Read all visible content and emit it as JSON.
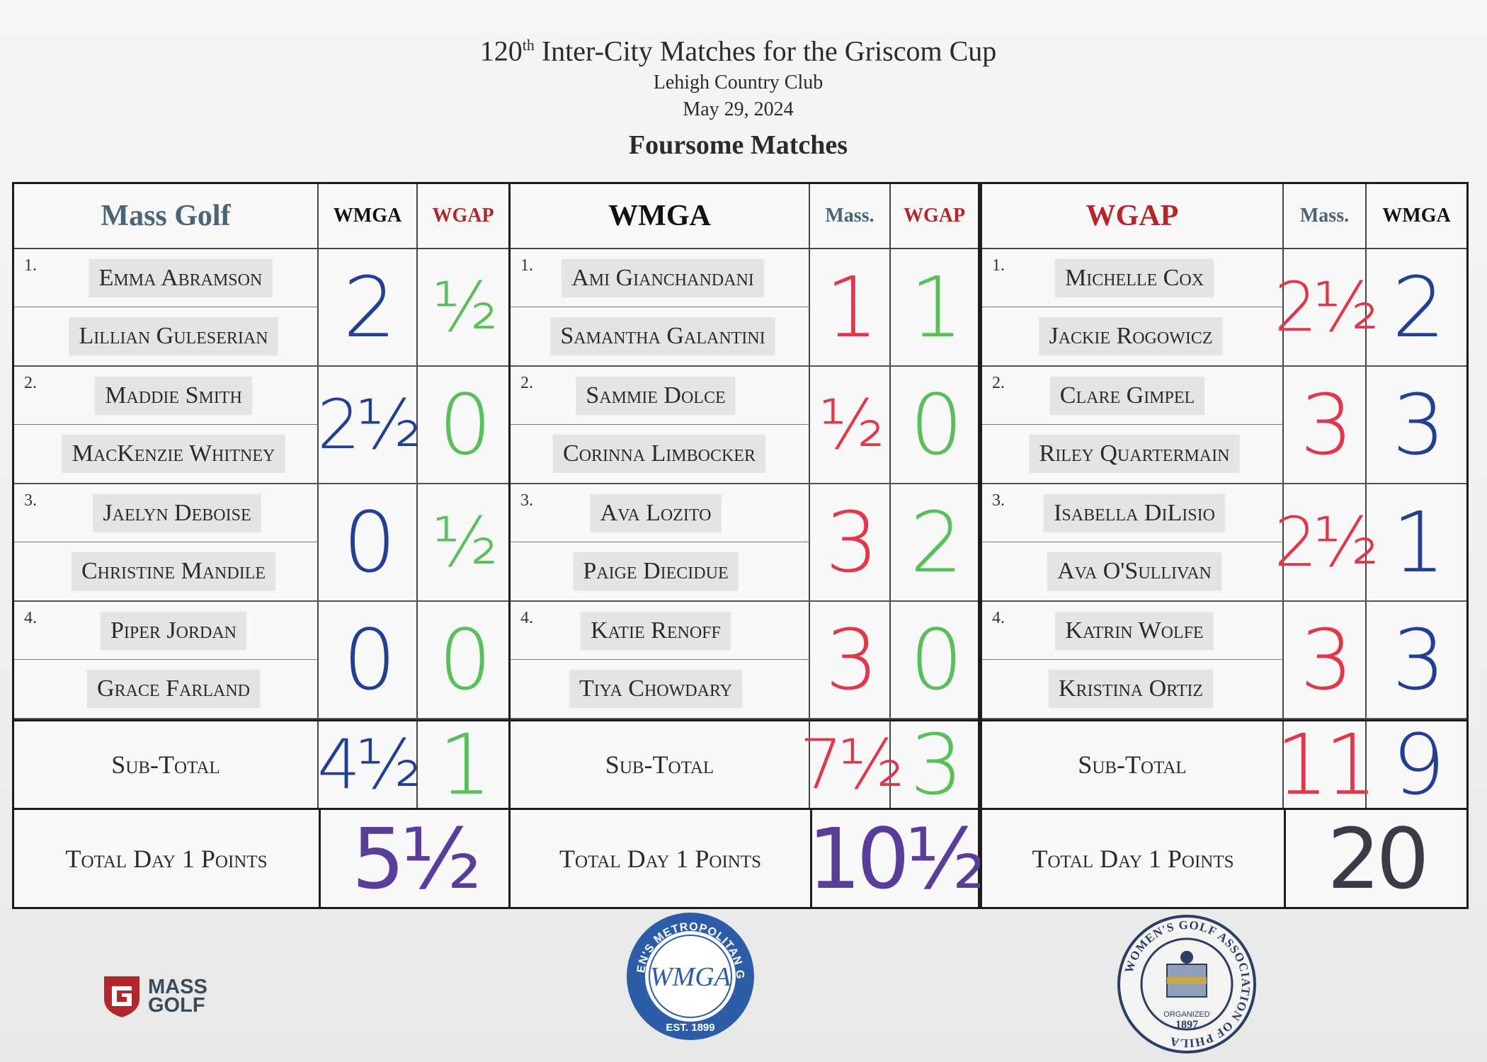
{
  "header": {
    "title_pre": "120",
    "title_sup": "th",
    "title_post": " Inter-City Matches for the Griscom Cup",
    "venue": "Lehigh Country Club",
    "date": "May 29, 2024",
    "format": "Foursome Matches"
  },
  "panels": [
    {
      "team": "Mass Golf",
      "col_a": "WMGA",
      "col_b": "WGAP",
      "matches": [
        {
          "num": "1.",
          "p1": "Emma Abramson",
          "p2": "Lillian Guleserian",
          "a": "2",
          "b": "½"
        },
        {
          "num": "2.",
          "p1": "Maddie Smith",
          "p2": "MacKenzie Whitney",
          "a": "2½",
          "b": "0"
        },
        {
          "num": "3.",
          "p1": "Jaelyn Deboise",
          "p2": "Christine Mandile",
          "a": "0",
          "b": "½"
        },
        {
          "num": "4.",
          "p1": "Piper Jordan",
          "p2": "Grace Farland",
          "a": "0",
          "b": "0"
        }
      ],
      "subtotal_label": "Sub-Total",
      "subtotal_a": "4½",
      "subtotal_b": "1",
      "total_label": "Total Day 1 Points",
      "total": "5½"
    },
    {
      "team": "WMGA",
      "col_a": "Mass.",
      "col_b": "WGAP",
      "matches": [
        {
          "num": "1.",
          "p1": "Ami Gianchandani",
          "p2": "Samantha Galantini",
          "a": "1",
          "b": "1"
        },
        {
          "num": "2.",
          "p1": "Sammie Dolce",
          "p2": "Corinna Limbocker",
          "a": "½",
          "b": "0"
        },
        {
          "num": "3.",
          "p1": "Ava Lozito",
          "p2": "Paige Diecidue",
          "a": "3",
          "b": "2"
        },
        {
          "num": "4.",
          "p1": "Katie Renoff",
          "p2": "Tiya Chowdary",
          "a": "3",
          "b": "0"
        }
      ],
      "subtotal_label": "Sub-Total",
      "subtotal_a": "7½",
      "subtotal_b": "3",
      "total_label": "Total Day 1 Points",
      "total": "10½"
    },
    {
      "team": "WGAP",
      "col_a": "Mass.",
      "col_b": "WMGA",
      "matches": [
        {
          "num": "1.",
          "p1": "Michelle Cox",
          "p2": "Jackie Rogowicz",
          "a": "2½",
          "b": "2"
        },
        {
          "num": "2.",
          "p1": "Clare Gimpel",
          "p2": "Riley Quartermain",
          "a": "3",
          "b": "3"
        },
        {
          "num": "3.",
          "p1": "Isabella DiLisio",
          "p2": "Ava O'Sullivan",
          "a": "2½",
          "b": "1"
        },
        {
          "num": "4.",
          "p1": "Katrin Wolfe",
          "p2": "Kristina Ortiz",
          "a": "3",
          "b": "3"
        }
      ],
      "subtotal_label": "Sub-Total",
      "subtotal_a": "11",
      "subtotal_b": "9",
      "total_label": "Total Day 1 Points",
      "total": "20"
    }
  ],
  "logos": {
    "massgolf_line1": "MASS",
    "massgolf_line2": "GOLF",
    "wmga_ring": "WOMEN'S METROPOLITAN GOLF",
    "wmga_mono": "WMGA",
    "wmga_est": "EST. 1899",
    "wgap_ring": "WOMEN'S GOLF ASSOCIATION OF PHILA",
    "wgap_org": "ORGANIZED",
    "wgap_year": "1897"
  },
  "colors": {
    "mass_team": "#4a6478",
    "wgap_team": "#b3262c",
    "wmga_team": "#111111",
    "ink_blue": "#233f93",
    "ink_green": "#58bf5a",
    "ink_red": "#e0384a",
    "ink_purple": "#5a3c9a"
  }
}
